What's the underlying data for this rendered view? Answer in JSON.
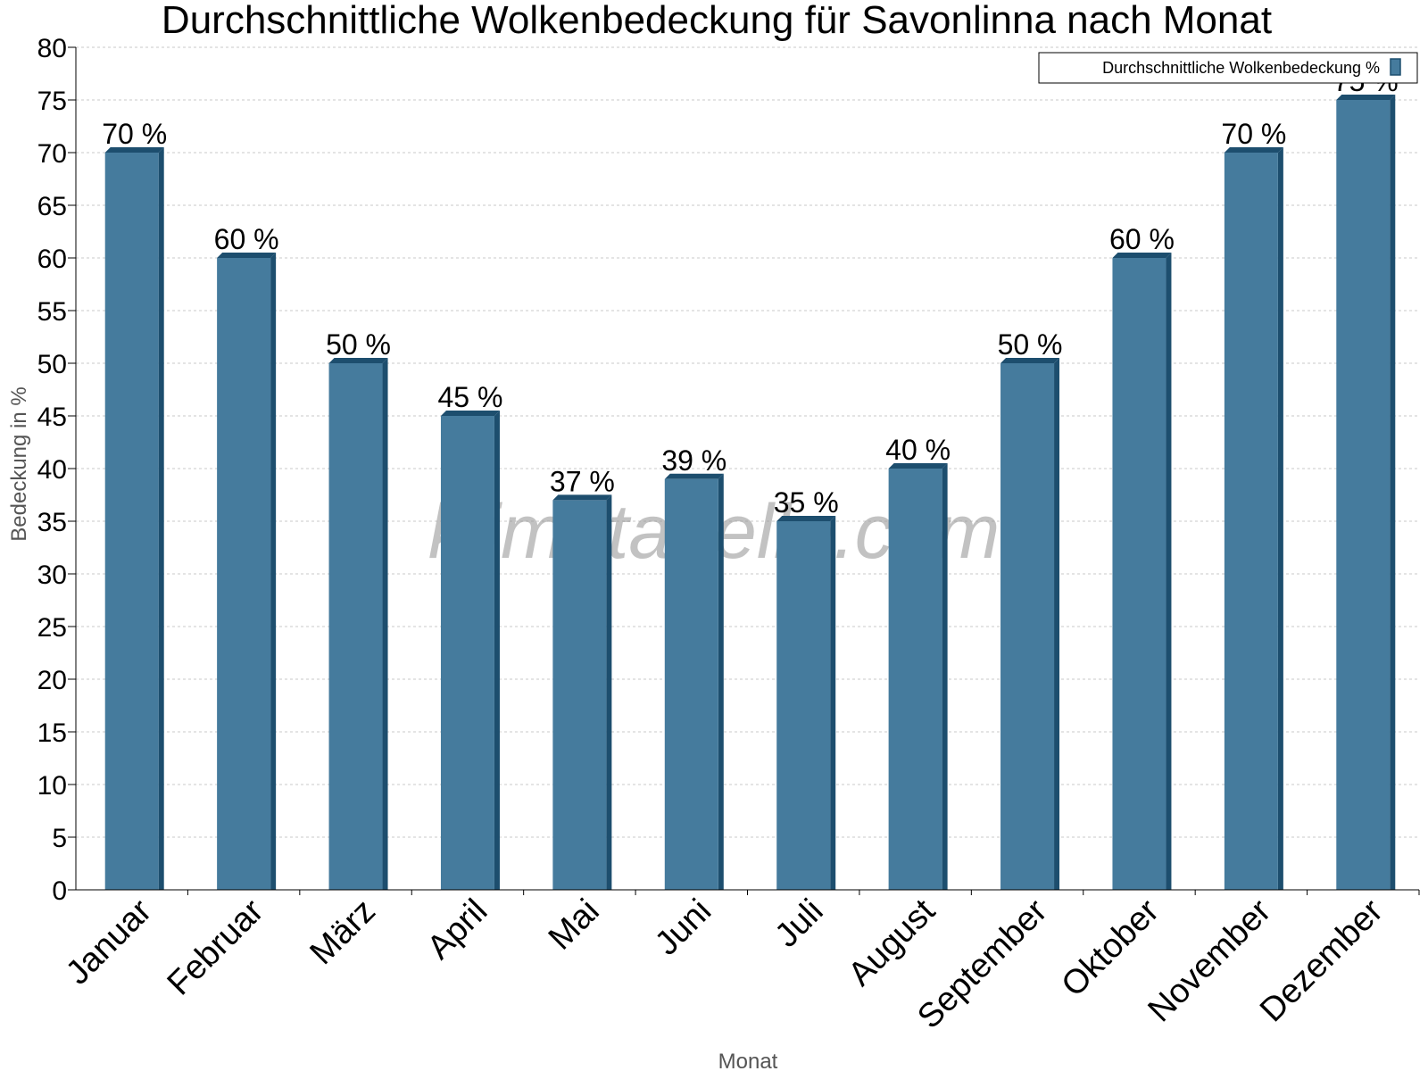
{
  "watermark": "klimatabelle.com",
  "legend": {
    "label": "Durchschnittliche Wolkenbedeckung %"
  },
  "colors": {
    "bar": "#457b9d",
    "bar_dark": "#1d4e6e",
    "grid": "#c8c8c8",
    "axis": "#000000"
  },
  "chart_data": {
    "type": "bar",
    "title": "Durchschnittliche Wolkenbedeckung für Savonlinna nach Monat",
    "xlabel": "Monat",
    "ylabel": "Bedeckung in %",
    "ylim": [
      0,
      80
    ],
    "yticks": [
      0,
      5,
      10,
      15,
      20,
      25,
      30,
      35,
      40,
      45,
      50,
      55,
      60,
      65,
      70,
      75,
      80
    ],
    "grid": true,
    "legend_position": "top-right",
    "categories": [
      "Januar",
      "Februar",
      "März",
      "April",
      "Mai",
      "Juni",
      "Juli",
      "August",
      "September",
      "Oktober",
      "November",
      "Dezember"
    ],
    "series": [
      {
        "name": "Durchschnittliche Wolkenbedeckung %",
        "values": [
          70,
          60,
          50,
          45,
          37,
          39,
          35,
          40,
          50,
          60,
          70,
          75
        ],
        "labels": [
          "70 %",
          "60 %",
          "50 %",
          "45 %",
          "37 %",
          "39 %",
          "35 %",
          "40 %",
          "50 %",
          "60 %",
          "70 %",
          "75 %"
        ]
      }
    ]
  }
}
